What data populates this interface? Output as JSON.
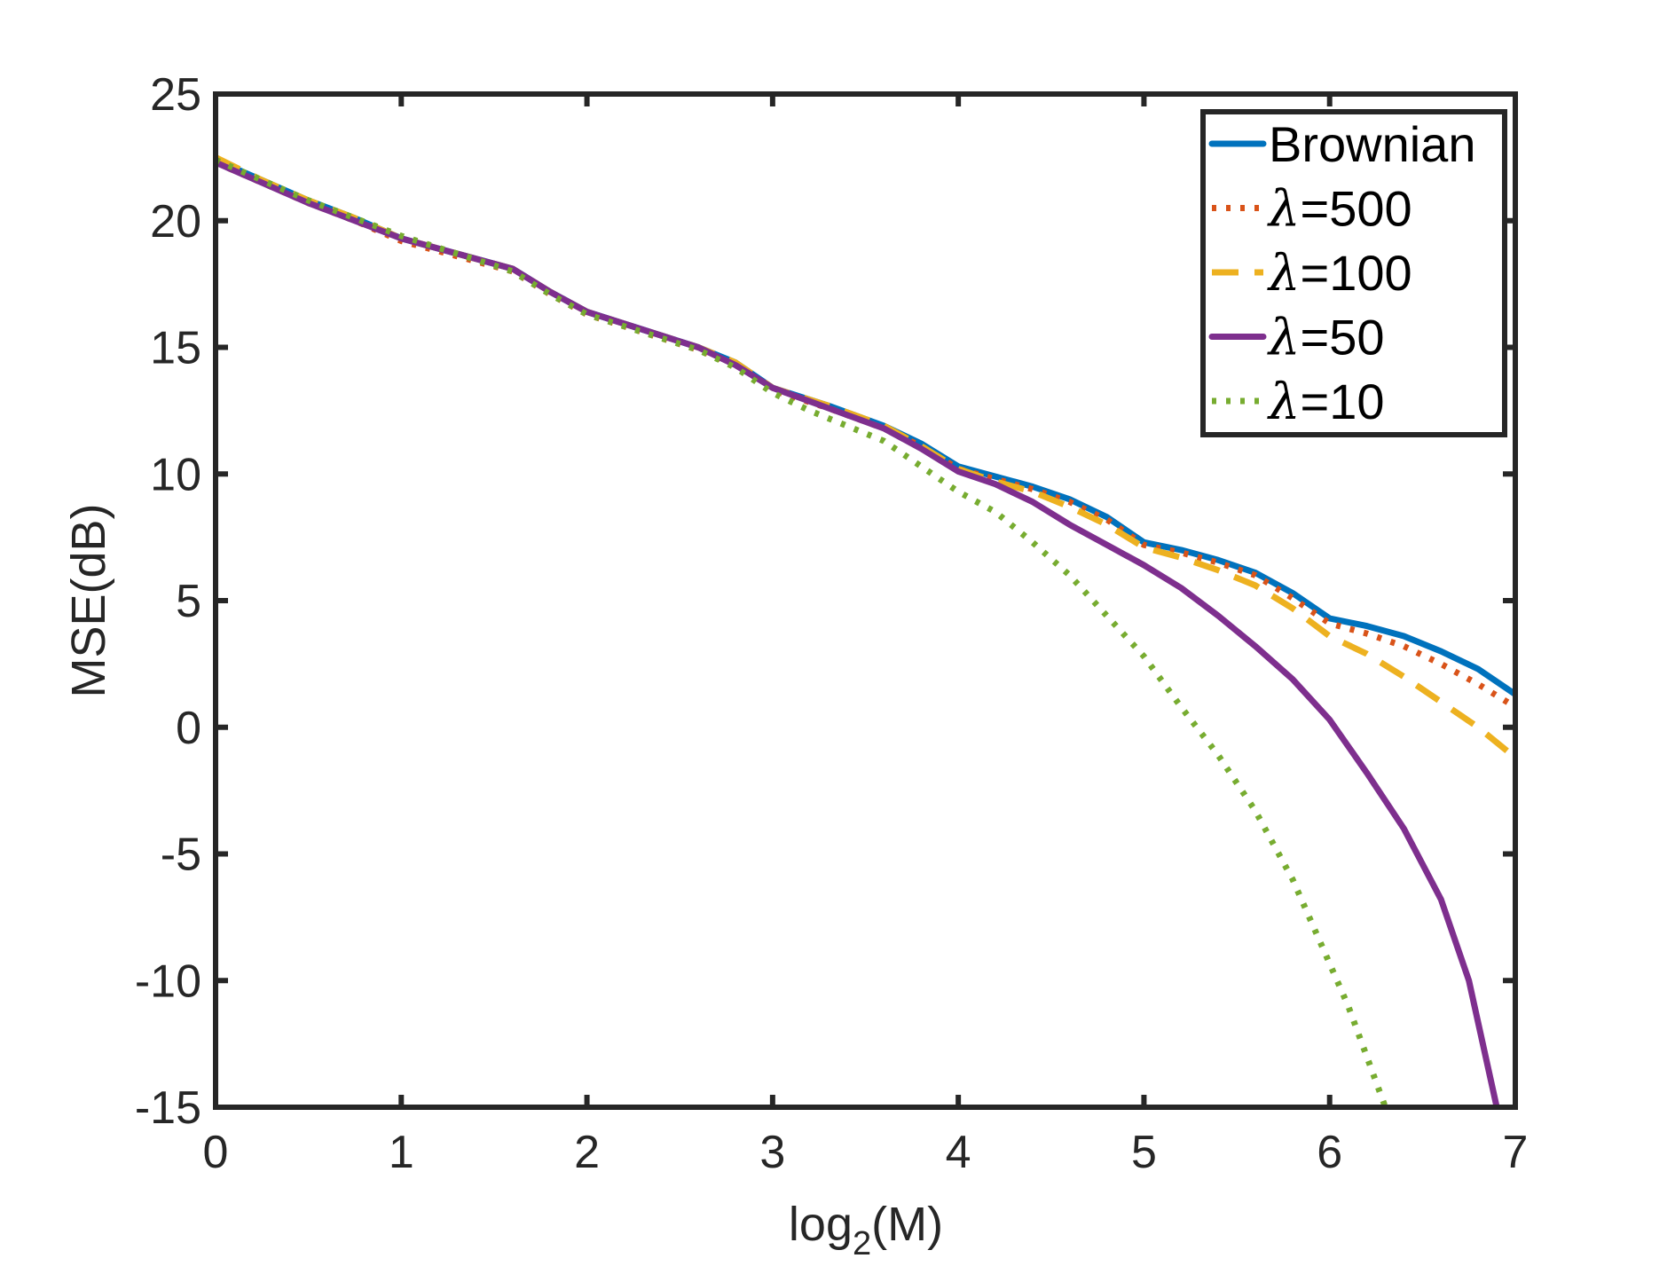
{
  "chart_data": {
    "type": "line",
    "title": "",
    "xlabel": "log",
    "xlabel_sub": "2",
    "xlabel_tail": "(M)",
    "ylabel": "MSE(dB)",
    "xlim": [
      0,
      7
    ],
    "ylim": [
      -15,
      25
    ],
    "xticks": [
      0,
      1,
      2,
      3,
      4,
      5,
      6,
      7
    ],
    "yticks": [
      -15,
      -10,
      -5,
      0,
      5,
      10,
      15,
      20,
      25
    ],
    "grid": false,
    "legend_position": "top-right",
    "series": [
      {
        "name": "Brownian",
        "legend_prefix": "",
        "legend_value": "Brownian",
        "color": "#0072BD",
        "style": "solid",
        "x": [
          0,
          0.25,
          0.5,
          0.75,
          1,
          1.3,
          1.6,
          1.8,
          2,
          2.3,
          2.6,
          2.8,
          3,
          3.3,
          3.6,
          3.8,
          4,
          4.2,
          4.4,
          4.6,
          4.8,
          5,
          5.2,
          5.4,
          5.6,
          5.8,
          6,
          6.2,
          6.4,
          6.6,
          6.8,
          7
        ],
        "y": [
          22.4,
          21.6,
          20.8,
          20.1,
          19.3,
          18.7,
          18.1,
          17.2,
          16.4,
          15.7,
          15.0,
          14.4,
          13.4,
          12.7,
          11.9,
          11.2,
          10.3,
          9.9,
          9.5,
          9.0,
          8.3,
          7.3,
          7.0,
          6.6,
          6.1,
          5.3,
          4.3,
          4.0,
          3.6,
          3.0,
          2.3,
          1.3
        ]
      },
      {
        "name": "λ=500",
        "legend_prefix": "λ",
        "legend_value": "=500",
        "color": "#D95319",
        "style": "dotted",
        "x": [
          0,
          0.25,
          0.5,
          0.75,
          1,
          1.3,
          1.6,
          1.8,
          2,
          2.3,
          2.6,
          2.8,
          3,
          3.3,
          3.6,
          3.8,
          4,
          4.2,
          4.4,
          4.6,
          4.8,
          5,
          5.2,
          5.4,
          5.6,
          5.8,
          6,
          6.2,
          6.4,
          6.6,
          6.8,
          7
        ],
        "y": [
          22.3,
          21.5,
          20.7,
          20.0,
          19.2,
          18.6,
          18.0,
          17.1,
          16.3,
          15.6,
          14.9,
          14.3,
          13.3,
          12.6,
          11.8,
          11.1,
          10.2,
          9.8,
          9.4,
          8.9,
          8.2,
          7.2,
          6.9,
          6.5,
          6.0,
          5.1,
          4.1,
          3.7,
          3.2,
          2.5,
          1.7,
          0.8
        ]
      },
      {
        "name": "λ=100",
        "legend_prefix": "λ",
        "legend_value": "=100",
        "color": "#EDB120",
        "style": "dashed",
        "x": [
          0,
          0.25,
          0.5,
          0.75,
          1,
          1.3,
          1.6,
          1.8,
          2,
          2.3,
          2.6,
          2.8,
          3,
          3.3,
          3.6,
          3.8,
          4,
          4.2,
          4.4,
          4.6,
          4.8,
          5,
          5.2,
          5.4,
          5.6,
          5.8,
          6,
          6.2,
          6.4,
          6.6,
          6.8,
          7
        ],
        "y": [
          22.5,
          21.6,
          20.8,
          20.1,
          19.3,
          18.7,
          18.1,
          17.2,
          16.4,
          15.7,
          15.0,
          14.4,
          13.4,
          12.7,
          11.9,
          11.1,
          10.2,
          9.7,
          9.3,
          8.7,
          8.0,
          7.1,
          6.7,
          6.2,
          5.6,
          4.7,
          3.6,
          2.9,
          2.0,
          1.0,
          0.0,
          -1.2
        ]
      },
      {
        "name": "λ=50",
        "legend_prefix": "λ",
        "legend_value": "=50",
        "color": "#7E2F8E",
        "style": "solid",
        "x": [
          0,
          0.25,
          0.5,
          0.75,
          1,
          1.3,
          1.6,
          1.8,
          2,
          2.3,
          2.6,
          2.8,
          3,
          3.3,
          3.6,
          3.8,
          4,
          4.2,
          4.4,
          4.6,
          4.8,
          5,
          5.2,
          5.4,
          5.6,
          5.8,
          6,
          6.2,
          6.4,
          6.6,
          6.75,
          6.9
        ],
        "y": [
          22.3,
          21.5,
          20.7,
          20.0,
          19.3,
          18.7,
          18.1,
          17.2,
          16.4,
          15.7,
          15.0,
          14.3,
          13.4,
          12.6,
          11.8,
          11.0,
          10.1,
          9.6,
          8.9,
          8.0,
          7.2,
          6.4,
          5.5,
          4.4,
          3.2,
          1.9,
          0.3,
          -1.8,
          -4.0,
          -6.8,
          -10.0,
          -15.0
        ]
      },
      {
        "name": "λ=10",
        "legend_prefix": "λ",
        "legend_value": "=10",
        "color": "#77AC30",
        "style": "dotted",
        "x": [
          0,
          0.25,
          0.5,
          0.75,
          1,
          1.3,
          1.6,
          1.8,
          2,
          2.3,
          2.6,
          2.8,
          3,
          3.2,
          3.4,
          3.6,
          3.8,
          4,
          4.2,
          4.4,
          4.6,
          4.8,
          5,
          5.2,
          5.4,
          5.6,
          5.8,
          5.95,
          6.1,
          6.2,
          6.3
        ],
        "y": [
          22.4,
          21.6,
          20.8,
          20.1,
          19.4,
          18.7,
          18.0,
          17.1,
          16.3,
          15.6,
          14.9,
          14.2,
          13.2,
          12.5,
          11.9,
          11.3,
          10.3,
          9.3,
          8.5,
          7.3,
          6.0,
          4.4,
          2.8,
          0.8,
          -1.1,
          -3.3,
          -6.0,
          -8.5,
          -11.0,
          -13.0,
          -15.0
        ]
      }
    ]
  }
}
